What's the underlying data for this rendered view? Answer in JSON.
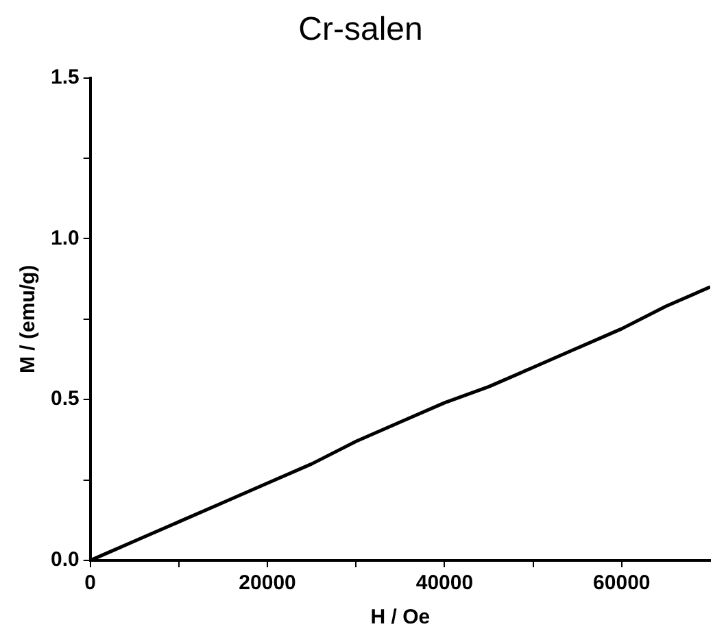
{
  "chart_data": {
    "type": "line",
    "title": "Cr-salen",
    "xlabel": "H / Oe",
    "ylabel": "M / (emu/g)",
    "x": [
      0,
      2500,
      5000,
      10000,
      15000,
      20000,
      25000,
      30000,
      35000,
      40000,
      45000,
      50000,
      55000,
      60000,
      65000,
      70000
    ],
    "series": [
      {
        "color": "#000000",
        "values": [
          0,
          0.03,
          0.06,
          0.12,
          0.18,
          0.24,
          0.3,
          0.37,
          0.43,
          0.49,
          0.54,
          0.6,
          0.66,
          0.72,
          0.79,
          0.85
        ]
      }
    ],
    "xlim": [
      0,
      70000
    ],
    "ylim": [
      0,
      1.5
    ],
    "xticks": [
      0,
      {
        "value": 10000,
        "label": null
      },
      20000,
      {
        "value": 30000,
        "label": null
      },
      40000,
      {
        "value": 50000,
        "label": null
      },
      60000
    ],
    "yticks": [
      {
        "value": 0,
        "label": "0.0"
      },
      {
        "value": 0.25,
        "label": null
      },
      0.5,
      {
        "value": 0.75,
        "label": null
      },
      {
        "value": 1,
        "label": "1.0"
      },
      {
        "value": 1.25,
        "label": null
      },
      1.5
    ],
    "grid": false,
    "legend": false,
    "marker": "none",
    "line_style": "solid"
  }
}
